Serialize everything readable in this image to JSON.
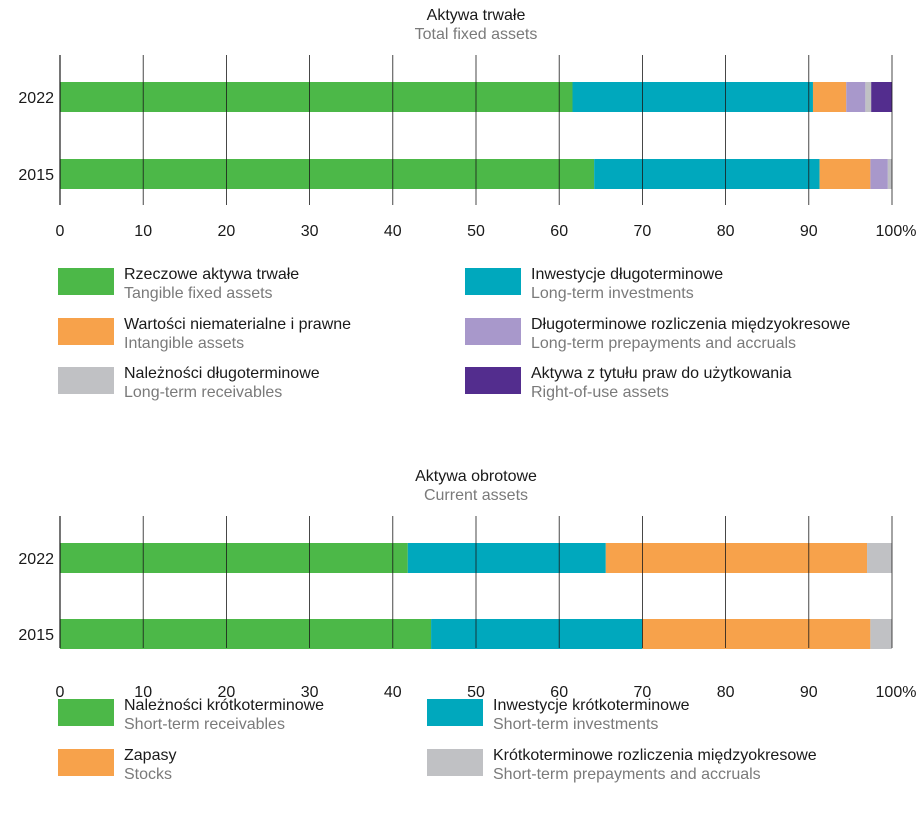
{
  "chart_data": [
    {
      "type": "bar",
      "orientation": "horizontal",
      "stacked": true,
      "title": "Aktywa trwałe",
      "subtitle": "Total fixed assets",
      "categories": [
        "2022",
        "2015"
      ],
      "x_ticks": [
        "0",
        "10",
        "20",
        "30",
        "40",
        "50",
        "60",
        "70",
        "80",
        "90",
        "100%"
      ],
      "xlim": [
        0,
        100
      ],
      "grid": true,
      "series": [
        {
          "name": "Rzeczowe aktywa trwałe",
          "name_en": "Tangible fixed assets",
          "color": "#4cb848",
          "values": [
            61.6,
            64.2
          ]
        },
        {
          "name": "Inwestycje długoterminowe",
          "name_en": "Long-term investments",
          "color": "#00a8bd",
          "values": [
            28.9,
            27.1
          ]
        },
        {
          "name": "Wartości niematerialne i prawne",
          "name_en": "Intangible assets",
          "color": "#f7a24b",
          "values": [
            4.0,
            6.1
          ]
        },
        {
          "name": "Długoterminowe rozliczenia międzyokresowe",
          "name_en": "Long-term prepayments and accruals",
          "color": "#a898cb",
          "values": [
            2.3,
            2.1
          ]
        },
        {
          "name": "Należności długoterminowe",
          "name_en": "Long-term receivables",
          "color": "#c0c1c4",
          "values": [
            0.7,
            0.5
          ]
        },
        {
          "name": "Aktywa z tytułu praw do użytkowania",
          "name_en": "Right-of-use assets",
          "color": "#532d8e",
          "values": [
            2.5,
            0
          ]
        }
      ],
      "legend": [
        {
          "name": "Rzeczowe aktywa trwałe",
          "name_en": "Tangible fixed assets",
          "color": "#4cb848"
        },
        {
          "name": "Inwestycje długoterminowe",
          "name_en": "Long-term investments",
          "color": "#00a8bd"
        },
        {
          "name": "Wartości niematerialne i prawne",
          "name_en": "Intangible assets",
          "color": "#f7a24b"
        },
        {
          "name": "Długoterminowe rozliczenia międzyokresowe",
          "name_en": "Long-term prepayments and accruals",
          "color": "#a898cb"
        },
        {
          "name": "Należności długoterminowe",
          "name_en": "Long-term receivables",
          "color": "#c0c1c4"
        },
        {
          "name": "Aktywa z tytułu praw do użytkowania",
          "name_en": "Right-of-use assets",
          "color": "#532d8e"
        }
      ]
    },
    {
      "type": "bar",
      "orientation": "horizontal",
      "stacked": true,
      "title": "Aktywa obrotowe",
      "subtitle": "Current assets",
      "categories": [
        "2022",
        "2015"
      ],
      "x_ticks": [
        "0",
        "10",
        "20",
        "30",
        "40",
        "50",
        "60",
        "70",
        "80",
        "90",
        "100%"
      ],
      "xlim": [
        0,
        100
      ],
      "grid": true,
      "series": [
        {
          "name": "Należności krótkoterminowe",
          "name_en": "Short-term receivables",
          "color": "#4cb848",
          "values": [
            41.8,
            44.6
          ]
        },
        {
          "name": "Inwestycje krótkoterminowe",
          "name_en": "Short-term investments",
          "color": "#00a8bd",
          "values": [
            23.8,
            25.4
          ]
        },
        {
          "name": "Zapasy",
          "name_en": "Stocks",
          "color": "#f7a24b",
          "values": [
            31.4,
            27.4
          ]
        },
        {
          "name": "Krótkoterminowe rozliczenia międzyokresowe",
          "name_en": "Short-term prepayments and accruals",
          "color": "#c0c1c4",
          "values": [
            3.0,
            2.6
          ]
        }
      ],
      "legend": [
        {
          "name": "Należności krótkoterminowe",
          "name_en": "Short-term receivables",
          "color": "#4cb848"
        },
        {
          "name": "Inwestycje krótkoterminowe",
          "name_en": "Short-term investments",
          "color": "#00a8bd"
        },
        {
          "name": "Zapasy",
          "name_en": "Stocks",
          "color": "#f7a24b"
        },
        {
          "name": "Krótkoterminowe rozliczenia międzyokresowe",
          "name_en": "Short-term prepayments and accruals",
          "color": "#c0c1c4"
        }
      ]
    }
  ]
}
